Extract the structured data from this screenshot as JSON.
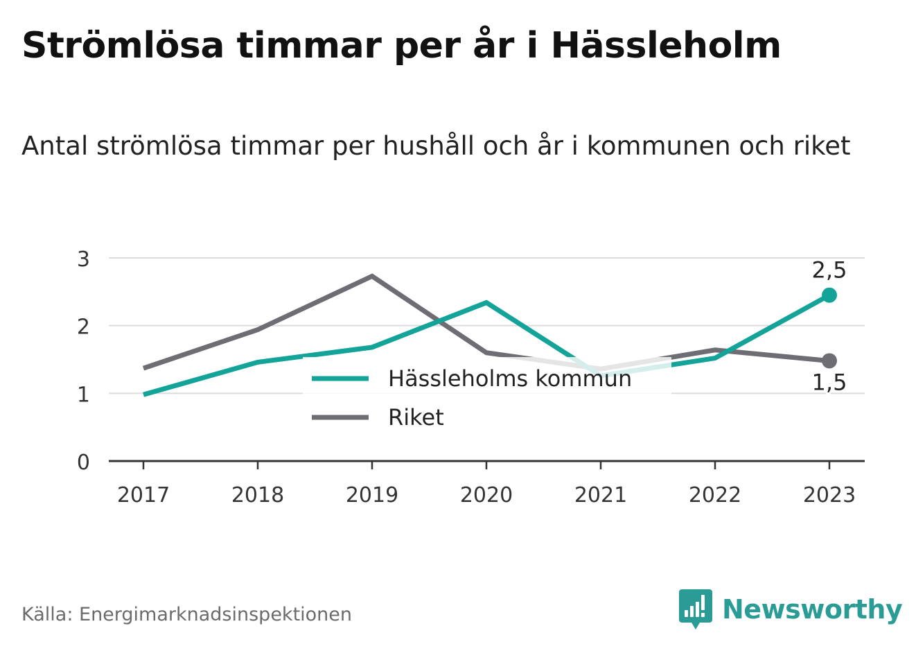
{
  "title": "Strömlösa timmar per år i Hässleholm",
  "subtitle": "Antal strömlösa timmar per hushåll och år i kommunen och riket",
  "source": "Källa: Energimarknadsinspektionen",
  "brand": {
    "name": "Newsworthy",
    "logo_icon": "newsworthy-bar-chart-logo",
    "color": "#2a9c95"
  },
  "chart_data": {
    "type": "line",
    "x": [
      "2017",
      "2018",
      "2019",
      "2020",
      "2021",
      "2022",
      "2023"
    ],
    "ylim": [
      0,
      3
    ],
    "yticks": [
      "0",
      "1",
      "2",
      "3"
    ],
    "grid": true,
    "legend_position": "center",
    "series": [
      {
        "name": "Hässleholms kommun",
        "color": "#14a398",
        "values": [
          0.98,
          1.46,
          1.68,
          2.34,
          1.26,
          1.52,
          2.45
        ],
        "end_label": "2,5"
      },
      {
        "name": "Riket",
        "color": "#6e6d73",
        "values": [
          1.37,
          1.94,
          2.73,
          1.6,
          1.36,
          1.64,
          1.48
        ],
        "end_label": "1,5"
      }
    ]
  }
}
